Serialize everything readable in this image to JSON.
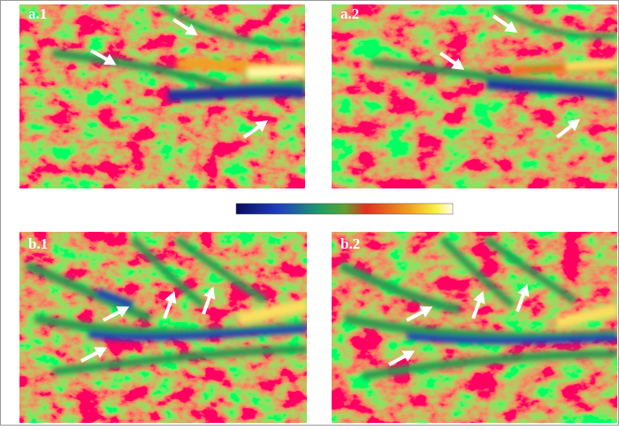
{
  "panels": [
    {
      "label": "a.1"
    },
    {
      "label": "a.2"
    },
    {
      "label": "b.1"
    },
    {
      "label": "b.2"
    }
  ]
}
